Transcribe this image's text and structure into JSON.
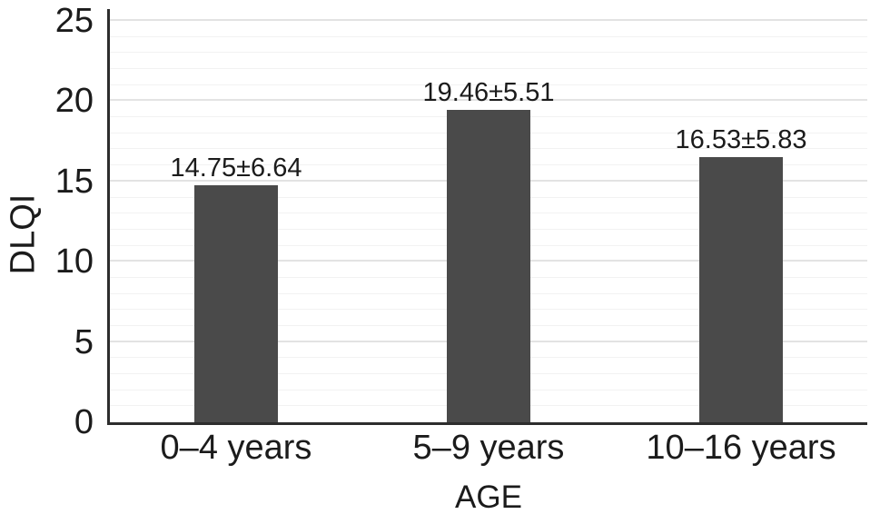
{
  "chart_data": {
    "type": "bar",
    "categories": [
      "0–4 years",
      "5–9 years",
      "10–16 years"
    ],
    "values": [
      14.75,
      19.46,
      16.53
    ],
    "errors": [
      6.64,
      5.51,
      5.83
    ],
    "bar_labels": [
      "14.75±6.64",
      "19.46±5.51",
      "16.53±5.83"
    ],
    "xlabel": "AGE",
    "ylabel": "DLQI",
    "ylim": [
      0,
      25
    ],
    "yticks": [
      0,
      5,
      10,
      15,
      20,
      25
    ],
    "grid_major_step": 5,
    "grid_minor_step": 1,
    "grid": "horizontal",
    "legend": "none",
    "bar_color": "#4a4a4a"
  },
  "colors": {
    "bar": "#4a4a4a",
    "axis_line": "#2d2d2d",
    "text": "#1b1b1b",
    "grid_minor": "#f2f2f2",
    "grid_major": "#e3e3e3",
    "background": "#ffffff"
  }
}
